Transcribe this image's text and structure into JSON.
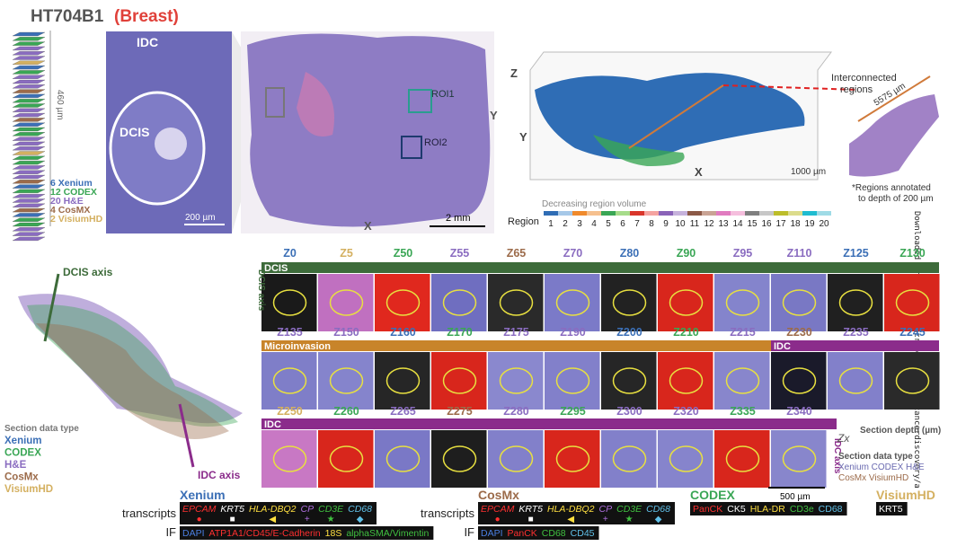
{
  "header": {
    "title": "HT704B1",
    "subtitle": "(Breast)"
  },
  "stack": {
    "depth": "460 µm",
    "types": [
      {
        "label": "6 Xenium",
        "color": "#3b6fb6"
      },
      {
        "label": "12 CODEX",
        "color": "#3aa655"
      },
      {
        "label": "20 H&E",
        "color": "#8a6cc0"
      },
      {
        "label": "4 CosMX",
        "color": "#9c6b4a"
      },
      {
        "label": "2 VisiumHD",
        "color": "#d4b060"
      }
    ]
  },
  "he": {
    "idc": "IDC",
    "dcis": "DCIS",
    "zoom_scale": "200 µm",
    "roi1": "ROI1",
    "roi2": "ROI2",
    "x": "X",
    "y": "Y",
    "scale": "2 mm"
  },
  "volume": {
    "z": "Z",
    "y": "Y",
    "x": "X",
    "scale": "1000 µm",
    "connected": [
      "Interconnected",
      "regions"
    ],
    "distance": "5575 µm",
    "note": [
      "*Regions annotated",
      "to depth of 200 µm"
    ],
    "order": "Decreasing region volume",
    "region": "Region",
    "regions": [
      {
        "label": 1,
        "color": "#2f6db5"
      },
      {
        "label": 2,
        "color": "#a6c8e8"
      },
      {
        "label": 3,
        "color": "#f08a2c"
      },
      {
        "label": 4,
        "color": "#f6c08e"
      },
      {
        "label": 5,
        "color": "#3aa655"
      },
      {
        "label": 6,
        "color": "#a6dc8a"
      },
      {
        "label": 7,
        "color": "#d9362b"
      },
      {
        "label": 8,
        "color": "#f5a3a0"
      },
      {
        "label": 9,
        "color": "#8a63b8"
      },
      {
        "label": 10,
        "color": "#c6b2dc"
      },
      {
        "label": 11,
        "color": "#8c5a47"
      },
      {
        "label": 12,
        "color": "#c9a394"
      },
      {
        "label": 13,
        "color": "#e17bc0"
      },
      {
        "label": 14,
        "color": "#f5bedd"
      },
      {
        "label": 15,
        "color": "#7f7f7f"
      },
      {
        "label": 16,
        "color": "#c7c7c7"
      },
      {
        "label": 17,
        "color": "#bcbd2a"
      },
      {
        "label": 18,
        "color": "#dcdc8c"
      },
      {
        "label": 19,
        "color": "#1fbcd0"
      },
      {
        "label": 20,
        "color": "#9fdbe6"
      }
    ]
  },
  "axes": {
    "dcis": "DCIS axis",
    "idc": "IDC axis",
    "type_title": "Section data type",
    "types": [
      {
        "label": "Xenium",
        "color": "#3b6fb6"
      },
      {
        "label": "CODEX",
        "color": "#3aa655"
      },
      {
        "label": "H&E",
        "color": "#8a6cc0"
      },
      {
        "label": "CosMx",
        "color": "#9c6b4a"
      },
      {
        "label": "VisiumHD",
        "color": "#d4b060"
      }
    ]
  },
  "sections": {
    "bands": [
      {
        "label": "DCIS",
        "color": "#3d6b3a"
      },
      {
        "label": "Microinvasion",
        "color": "#c8842a"
      },
      {
        "label": "IDC",
        "color": "#8b2c8b"
      }
    ],
    "rows": [
      [
        {
          "label": "Z0",
          "color": "#3b6fb6",
          "tile": "#1a1a1a"
        },
        {
          "label": "Z5",
          "color": "#d4b060",
          "tile": "#c070c0"
        },
        {
          "label": "Z50",
          "color": "#3aa655",
          "tile": "#e0281e"
        },
        {
          "label": "Z55",
          "color": "#8a6cc0",
          "tile": "#6f6ec0"
        },
        {
          "label": "Z65",
          "color": "#9c6b4a",
          "tile": "#2a2a2a"
        },
        {
          "label": "Z70",
          "color": "#8a6cc0",
          "tile": "#7b7ac8"
        },
        {
          "label": "Z80",
          "color": "#3b6fb6",
          "tile": "#222222"
        },
        {
          "label": "Z90",
          "color": "#3aa655",
          "tile": "#d8261c"
        },
        {
          "label": "Z95",
          "color": "#8a6cc0",
          "tile": "#8484cc"
        },
        {
          "label": "Z110",
          "color": "#8a6cc0",
          "tile": "#7978c4"
        },
        {
          "label": "Z125",
          "color": "#3b6fb6",
          "tile": "#202020"
        },
        {
          "label": "Z130",
          "color": "#3aa655",
          "tile": "#d8261c"
        }
      ],
      [
        {
          "label": "Z135",
          "color": "#8a6cc0",
          "tile": "#7f7ec8"
        },
        {
          "label": "Z150",
          "color": "#8a6cc0",
          "tile": "#8584cc"
        },
        {
          "label": "Z160",
          "color": "#3b6fb6",
          "tile": "#262626"
        },
        {
          "label": "Z170",
          "color": "#3aa655",
          "tile": "#d8261c"
        },
        {
          "label": "Z175",
          "color": "#8a6cc0",
          "tile": "#8a88ce"
        },
        {
          "label": "Z190",
          "color": "#8a6cc0",
          "tile": "#8280ca"
        },
        {
          "label": "Z200",
          "color": "#3b6fb6",
          "tile": "#262626"
        },
        {
          "label": "Z210",
          "color": "#3aa655",
          "tile": "#d8261c"
        },
        {
          "label": "Z215",
          "color": "#8a6cc0",
          "tile": "#8886cc"
        },
        {
          "label": "Z230",
          "color": "#9c6b4a",
          "tile": "#1a1a2a"
        },
        {
          "label": "Z235",
          "color": "#8a6cc0",
          "tile": "#8280ca"
        },
        {
          "label": "Z245",
          "color": "#3b6fb6",
          "tile": "#2a2a2a"
        }
      ],
      [
        {
          "label": "Z250",
          "color": "#d4b060",
          "tile": "#c878c4"
        },
        {
          "label": "Z260",
          "color": "#3aa655",
          "tile": "#d8261c"
        },
        {
          "label": "Z265",
          "color": "#8a6cc0",
          "tile": "#7a78c6"
        },
        {
          "label": "Z275",
          "color": "#9c6b4a",
          "tile": "#1e1e1e"
        },
        {
          "label": "Z280",
          "color": "#8a6cc0",
          "tile": "#8280ca"
        },
        {
          "label": "Z295",
          "color": "#3aa655",
          "tile": "#d8261c"
        },
        {
          "label": "Z300",
          "color": "#8a6cc0",
          "tile": "#8280ca"
        },
        {
          "label": "Z320",
          "color": "#8a6cc0",
          "tile": "#8684cc"
        },
        {
          "label": "Z335",
          "color": "#3aa655",
          "tile": "#d8261c"
        },
        {
          "label": "Z340",
          "color": "#8a6cc0",
          "tile": "#8886cc"
        }
      ]
    ],
    "dcis_axis": "DCIS axis",
    "idc_axis": "IDC axis",
    "depth": "Section depth (µm)",
    "zx": "Zx",
    "type_title": "Section data type",
    "types_line1": "Xenium CODEX H&E",
    "types_line2": "CosMx VisiumHD",
    "scale": "500 µm"
  },
  "legend": {
    "transcripts_label": "transcripts",
    "if_label": "IF",
    "xenium": {
      "title": "Xenium",
      "transcripts": [
        {
          "name": "EPCAM",
          "color": "#ff3030"
        },
        {
          "name": "KRT5",
          "color": "#ffffff"
        },
        {
          "name": "HLA-DBQ2",
          "color": "#ffe040"
        },
        {
          "name": "CP",
          "color": "#b070e0"
        },
        {
          "name": "CD3E",
          "color": "#40c040"
        },
        {
          "name": "CD68",
          "color": "#60c0e8"
        }
      ],
      "if": [
        {
          "name": "DAPI",
          "color": "#4a7ee0"
        },
        {
          "name": "ATP1A1/CD45/E-Cadherin",
          "color": "#ff3030"
        },
        {
          "name": "18S",
          "color": "#ffe040"
        },
        {
          "name": "alphaSMA/Vimentin",
          "color": "#40c040"
        }
      ]
    },
    "cosmx": {
      "title": "CosMx",
      "transcripts": [
        {
          "name": "EPCAM",
          "color": "#ff3030"
        },
        {
          "name": "KRT5",
          "color": "#ffffff"
        },
        {
          "name": "HLA-DBQ2",
          "color": "#ffe040"
        },
        {
          "name": "CP",
          "color": "#b070e0"
        },
        {
          "name": "CD3E",
          "color": "#40c040"
        },
        {
          "name": "CD68",
          "color": "#60c0e8"
        }
      ],
      "if": [
        {
          "name": "DAPI",
          "color": "#4a7ee0"
        },
        {
          "name": "PanCK",
          "color": "#ff3030"
        },
        {
          "name": "CD68",
          "color": "#40c040"
        },
        {
          "name": "CD45",
          "color": "#60c0e8"
        }
      ]
    },
    "codex": {
      "title": "CODEX",
      "markers": [
        {
          "name": "PanCK",
          "color": "#ff3030"
        },
        {
          "name": "CK5",
          "color": "#ffffff"
        },
        {
          "name": "HLA-DR",
          "color": "#ffe040"
        },
        {
          "name": "CD3e",
          "color": "#40c040"
        },
        {
          "name": "CD68",
          "color": "#60c0e8"
        }
      ]
    },
    "visium": {
      "title": "VisiumHD",
      "markers": [
        {
          "name": "KRT5",
          "color": "#ffffff"
        }
      ]
    }
  },
  "watermark": "Downloaded from http://aacrjournals.org/cancerdiscovery/a"
}
